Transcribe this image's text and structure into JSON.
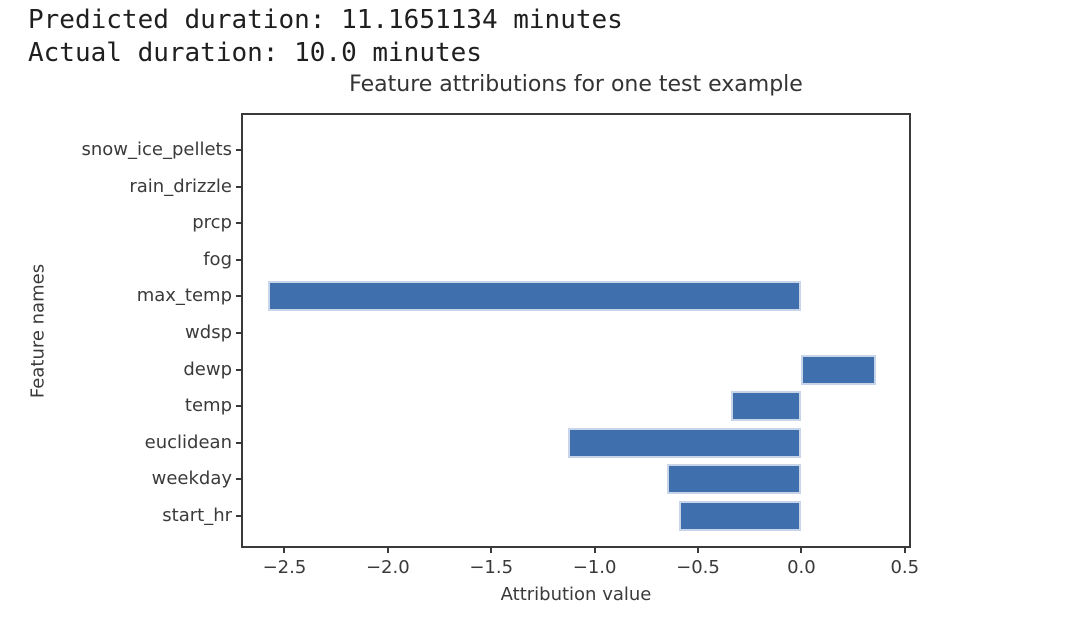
{
  "header": {
    "line1": "Predicted duration: 11.1651134 minutes",
    "line2": "Actual duration: 10.0 minutes"
  },
  "chart_data": {
    "type": "bar",
    "orientation": "horizontal",
    "title": "Feature attributions for one test example",
    "xlabel": "Attribution value",
    "ylabel": "Feature names",
    "categories": [
      "snow_ice_pellets",
      "rain_drizzle",
      "prcp",
      "fog",
      "max_temp",
      "wdsp",
      "dewp",
      "temp",
      "euclidean",
      "weekday",
      "start_hr"
    ],
    "values": [
      0,
      0,
      0,
      0,
      -2.58,
      0,
      0.36,
      -0.34,
      -1.13,
      -0.65,
      -0.59
    ],
    "xlim": [
      -2.71,
      0.53
    ],
    "x_ticks": [
      -2.5,
      -2.0,
      -1.5,
      -1.0,
      -0.5,
      0.0,
      0.5
    ],
    "x_tick_labels": [
      "−2.5",
      "−2.0",
      "−1.5",
      "−1.0",
      "−0.5",
      "0.0",
      "0.5"
    ],
    "grid": false,
    "legend": null,
    "bar_color": "#406fad",
    "bar_edge_color": "#c8d5e9",
    "spine_color": "#3a3a3a"
  }
}
